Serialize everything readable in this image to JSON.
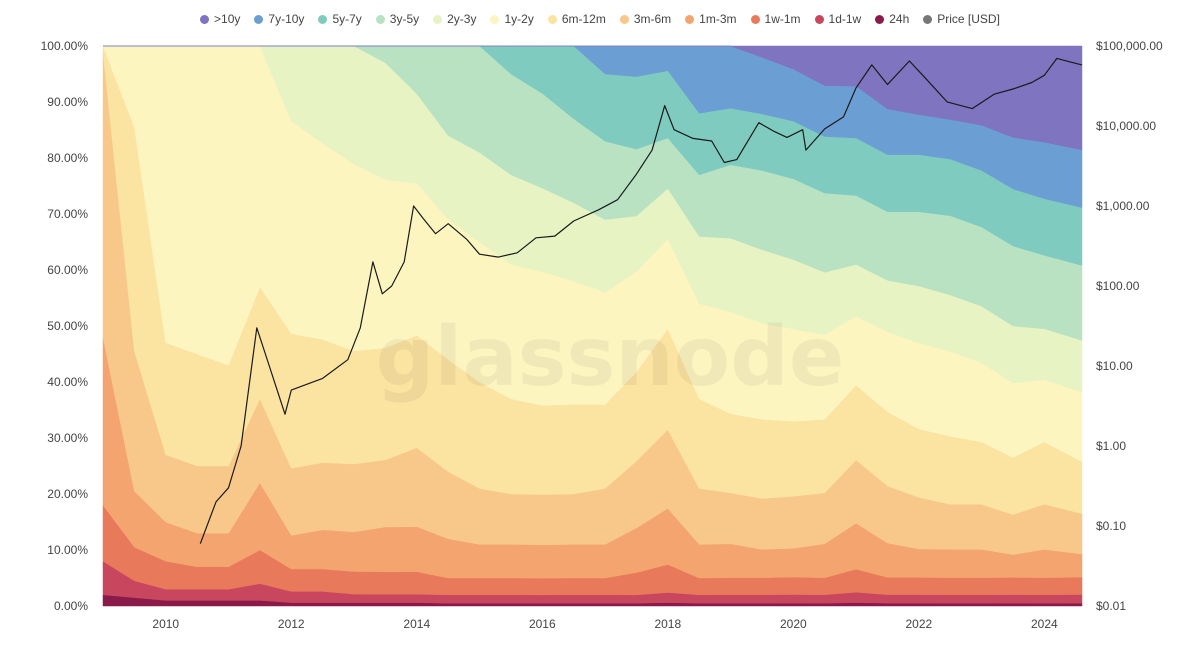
{
  "chart_data": {
    "type": "area",
    "stacking": "percent",
    "title": "",
    "watermark": "glassnode",
    "legend_position": "top-center",
    "grid": false,
    "x": [
      2009.0,
      2009.5,
      2010.0,
      2010.5,
      2011.0,
      2011.5,
      2012.0,
      2012.5,
      2013.0,
      2013.5,
      2014.0,
      2014.5,
      2015.0,
      2015.5,
      2016.0,
      2016.5,
      2017.0,
      2017.5,
      2018.0,
      2018.5,
      2019.0,
      2019.5,
      2020.0,
      2020.5,
      2021.0,
      2021.5,
      2022.0,
      2022.5,
      2023.0,
      2023.5,
      2024.0,
      2024.6
    ],
    "xlim": [
      2009.0,
      2024.6
    ],
    "x_ticks": [
      "2010",
      "2012",
      "2014",
      "2016",
      "2018",
      "2020",
      "2022",
      "2024"
    ],
    "x_tick_values": [
      2010,
      2012,
      2014,
      2016,
      2018,
      2020,
      2022,
      2024
    ],
    "y_left": {
      "ticks": [
        "0.00%",
        "10.00%",
        "20.00%",
        "30.00%",
        "40.00%",
        "50.00%",
        "60.00%",
        "70.00%",
        "80.00%",
        "90.00%",
        "100.00%"
      ],
      "ylim": [
        0,
        100
      ]
    },
    "y_right": {
      "scale": "log",
      "ticks": [
        "$0.01",
        "$0.10",
        "$1.00",
        "$10.00",
        "$100.00",
        "$1,000.00",
        "$10,000.00",
        "$100,000.00"
      ],
      "ylim": [
        0.01,
        100000
      ]
    },
    "series": [
      {
        "name": "24h",
        "color": "#8a1a4a",
        "values": [
          2,
          1.5,
          1,
          1,
          1,
          1,
          0.6,
          0.6,
          0.6,
          0.6,
          0.6,
          0.5,
          0.5,
          0.5,
          0.5,
          0.5,
          0.5,
          0.5,
          0.6,
          0.5,
          0.5,
          0.5,
          0.5,
          0.5,
          0.6,
          0.5,
          0.5,
          0.5,
          0.5,
          0.5,
          0.5,
          0.5
        ]
      },
      {
        "name": "1d-1w",
        "color": "#c8475e",
        "values": [
          6,
          3,
          2,
          2,
          2,
          3,
          2,
          2,
          1.5,
          1.5,
          1.5,
          1.5,
          1.5,
          1.5,
          1.5,
          1.5,
          1.5,
          1.5,
          1.8,
          1.5,
          1.5,
          1.5,
          1.5,
          1.5,
          1.8,
          1.5,
          1.5,
          1.5,
          1.5,
          1.5,
          1.5,
          1.5
        ]
      },
      {
        "name": "1w-1m",
        "color": "#e9795b",
        "values": [
          10,
          6,
          5,
          4,
          4,
          6,
          4,
          4,
          4,
          4,
          4,
          3,
          3,
          3,
          3,
          3,
          3,
          4,
          5,
          3,
          3,
          3,
          3,
          3,
          4,
          3,
          3,
          3,
          3,
          3,
          3,
          3
        ]
      },
      {
        "name": "1m-3m",
        "color": "#f3a46f",
        "values": [
          30,
          10,
          7,
          6,
          6,
          12,
          6,
          7,
          7,
          8,
          8,
          7,
          6,
          6,
          6,
          6,
          6,
          8,
          10,
          6,
          6,
          5,
          5,
          6,
          8,
          6,
          5,
          5,
          5,
          4,
          5,
          4
        ]
      },
      {
        "name": "3m-6m",
        "color": "#f8c88a",
        "values": [
          51,
          25,
          12,
          12,
          12,
          15,
          12,
          12,
          12,
          12,
          14,
          12,
          10,
          9,
          9,
          9,
          10,
          12,
          14,
          10,
          9,
          9,
          9,
          9,
          11,
          10,
          9,
          8,
          8,
          7,
          8,
          7
        ]
      },
      {
        "name": "6m-12m",
        "color": "#fbe3a1",
        "values": [
          1,
          40,
          20,
          20,
          18,
          20,
          24,
          22,
          20,
          20,
          20,
          20,
          19,
          17,
          16,
          16,
          15,
          16,
          18,
          16,
          14,
          14,
          13,
          13,
          13,
          13,
          12,
          12,
          11,
          10,
          11,
          9
        ]
      },
      {
        "name": "1y-2y",
        "color": "#fdf5c0",
        "values": [
          0,
          14.5,
          53,
          55,
          57,
          43,
          38,
          35,
          33,
          30,
          27,
          25,
          25,
          24,
          24,
          22,
          20,
          18,
          16,
          17,
          18,
          17,
          16,
          15,
          12,
          14,
          15,
          15,
          14,
          13,
          11,
          12
        ]
      },
      {
        "name": "2y-3y",
        "color": "#e8f3c4",
        "values": [
          0,
          0,
          0,
          0,
          0,
          0,
          13.4,
          17.4,
          20.9,
          20.9,
          15.9,
          15,
          16,
          16,
          15,
          14,
          13,
          10,
          9,
          12,
          13,
          13,
          12,
          11,
          9,
          9,
          10,
          10,
          10,
          10,
          9,
          9
        ]
      },
      {
        "name": "3y-5y",
        "color": "#b9e2c2",
        "values": [
          0,
          0,
          0,
          0,
          0,
          0,
          0,
          0,
          0,
          3,
          8.5,
          16,
          19,
          18,
          17,
          15,
          14,
          12,
          9,
          11,
          13,
          14,
          14,
          14,
          12,
          12,
          13,
          14,
          14,
          14,
          13,
          13
        ]
      },
      {
        "name": "5y-7y",
        "color": "#7fcbbf",
        "values": [
          0,
          0,
          0,
          0,
          0,
          0,
          0,
          0,
          0,
          0,
          0,
          0,
          0,
          5,
          8.5,
          13,
          12,
          13,
          12,
          11,
          10,
          10,
          10,
          10,
          10,
          10,
          10,
          10,
          10,
          10,
          10,
          10
        ]
      },
      {
        "name": "7y-10y",
        "color": "#6b9fd3",
        "values": [
          0,
          0,
          0,
          0,
          0,
          0,
          0,
          0,
          0,
          0,
          0,
          0,
          0,
          0,
          0,
          0,
          5,
          5.5,
          4.4,
          12,
          11,
          10,
          9,
          9,
          9,
          8,
          7,
          7,
          8,
          9,
          10,
          10
        ]
      },
      {
        "name": ">10y",
        "color": "#7f74bf",
        "values": [
          0,
          0,
          0,
          0,
          0,
          0,
          0,
          0,
          0,
          0,
          0,
          0,
          0,
          0,
          0,
          0,
          0,
          0,
          0,
          0,
          0,
          2,
          4,
          7,
          7,
          11,
          12,
          13,
          14,
          16,
          17,
          18
        ]
      }
    ],
    "price_series": {
      "name": "Price [USD]",
      "color": "#1a1a1a",
      "legend_color": "#777777",
      "points": [
        [
          2010.55,
          0.06
        ],
        [
          2010.8,
          0.2
        ],
        [
          2011.0,
          0.3
        ],
        [
          2011.2,
          1.0
        ],
        [
          2011.45,
          30
        ],
        [
          2011.65,
          10
        ],
        [
          2011.9,
          2.5
        ],
        [
          2012.0,
          5
        ],
        [
          2012.5,
          7
        ],
        [
          2012.9,
          12
        ],
        [
          2013.1,
          30
        ],
        [
          2013.3,
          200
        ],
        [
          2013.45,
          80
        ],
        [
          2013.6,
          100
        ],
        [
          2013.8,
          200
        ],
        [
          2013.95,
          1000
        ],
        [
          2014.1,
          700
        ],
        [
          2014.3,
          450
        ],
        [
          2014.5,
          600
        ],
        [
          2014.8,
          380
        ],
        [
          2015.0,
          250
        ],
        [
          2015.3,
          230
        ],
        [
          2015.6,
          260
        ],
        [
          2015.9,
          400
        ],
        [
          2016.2,
          420
        ],
        [
          2016.5,
          650
        ],
        [
          2016.9,
          900
        ],
        [
          2017.2,
          1200
        ],
        [
          2017.5,
          2500
        ],
        [
          2017.75,
          5000
        ],
        [
          2017.95,
          18000
        ],
        [
          2018.1,
          9000
        ],
        [
          2018.4,
          7000
        ],
        [
          2018.7,
          6500
        ],
        [
          2018.9,
          3500
        ],
        [
          2019.1,
          3800
        ],
        [
          2019.45,
          11000
        ],
        [
          2019.7,
          8500
        ],
        [
          2019.9,
          7200
        ],
        [
          2020.15,
          9000
        ],
        [
          2020.2,
          5000
        ],
        [
          2020.5,
          9200
        ],
        [
          2020.8,
          13000
        ],
        [
          2021.0,
          30000
        ],
        [
          2021.25,
          58000
        ],
        [
          2021.5,
          33000
        ],
        [
          2021.85,
          65000
        ],
        [
          2022.1,
          40000
        ],
        [
          2022.45,
          20000
        ],
        [
          2022.85,
          16500
        ],
        [
          2023.2,
          25000
        ],
        [
          2023.5,
          29000
        ],
        [
          2023.8,
          35000
        ],
        [
          2024.0,
          43000
        ],
        [
          2024.2,
          70000
        ],
        [
          2024.45,
          62000
        ],
        [
          2024.6,
          58000
        ]
      ]
    }
  }
}
